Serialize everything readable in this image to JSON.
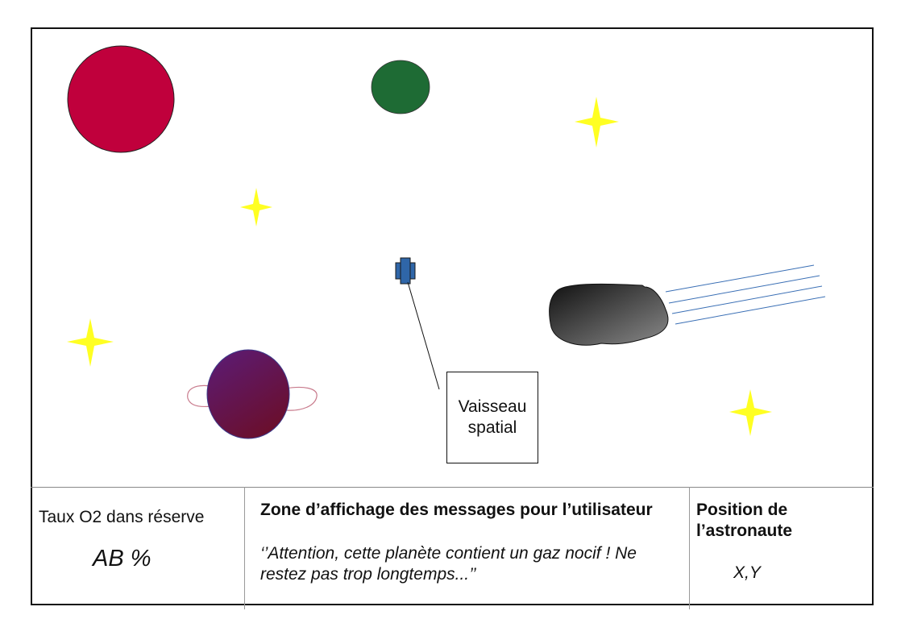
{
  "scene": {
    "ship_label": "Vaisseau\nspatial",
    "colors": {
      "red_planet": "#C0003C",
      "green_planet": "#1E6B34",
      "star": "#FFFF22",
      "ship": "#2F66A8",
      "ringed_planet_top": "#5B1C78",
      "ringed_planet_bottom": "#6A0F2E",
      "ring": "#C87A8C",
      "asteroid_dark": "#111111",
      "asteroid_light": "#8A8A8A",
      "trail": "#3A6FB5"
    },
    "icons": [
      "red-planet-icon",
      "green-planet-icon",
      "star-icon",
      "spaceship-icon",
      "ringed-planet-icon",
      "asteroid-icon"
    ]
  },
  "hud": {
    "o2_label": "Taux O2 dans réserve",
    "o2_value": "AB %",
    "message_title": "Zone d’affichage des messages pour l’utilisateur",
    "message_text": "‘’Attention, cette planète contient un gaz nocif ! Ne restez pas trop longtemps...’’",
    "position_title": "Position de l’astronaute",
    "position_value": "X,Y"
  }
}
